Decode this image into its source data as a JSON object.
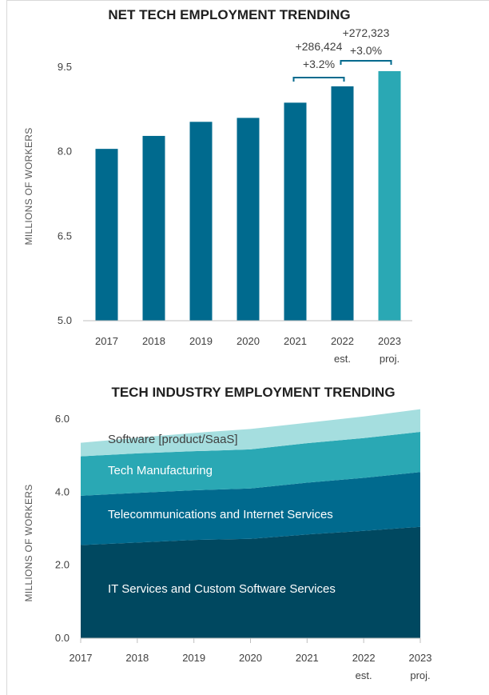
{
  "chart_data": [
    {
      "type": "bar",
      "title": "NET TECH EMPLOYMENT TRENDING",
      "ylabel": "MILLIONS OF WORKERS",
      "xlabel": "",
      "ylim": [
        5.0,
        10.0
      ],
      "yticks": [
        "5.0",
        "6.5",
        "8.0",
        "9.5"
      ],
      "categories": [
        "2017",
        "2018",
        "2019",
        "2020",
        "2021",
        "2022",
        "2023"
      ],
      "category_notes": [
        "",
        "",
        "",
        "",
        "",
        "est.",
        "proj."
      ],
      "values": [
        8.05,
        8.28,
        8.53,
        8.6,
        8.87,
        9.16,
        9.43
      ],
      "colors": [
        "#006a8e",
        "#006a8e",
        "#006a8e",
        "#006a8e",
        "#006a8e",
        "#006a8e",
        "#2aa8b4"
      ],
      "annotations": [
        {
          "text": "+286,424",
          "pct": "+3.2%",
          "from": "2021",
          "to": "2022"
        },
        {
          "text": "+272,323",
          "pct": "+3.0%",
          "from": "2022",
          "to": "2023"
        }
      ],
      "grid": false
    },
    {
      "type": "area",
      "stacked": true,
      "title": "TECH INDUSTRY EMPLOYMENT TRENDING",
      "ylabel": "MILLIONS OF WORKERS",
      "xlabel": "",
      "ylim": [
        0,
        6.3
      ],
      "yticks": [
        "0.0",
        "2.0",
        "4.0",
        "6.0"
      ],
      "x": [
        "2017",
        "2018",
        "2019",
        "2020",
        "2021",
        "2022",
        "2023"
      ],
      "x_notes": [
        "",
        "",
        "",
        "",
        "",
        "est.",
        "proj."
      ],
      "series": [
        {
          "name": "IT Services and Custom Software Services",
          "color": "#004860",
          "label_color": "#ffffff",
          "values": [
            2.55,
            2.62,
            2.69,
            2.72,
            2.84,
            2.94,
            3.05
          ]
        },
        {
          "name": "Telecommunications and Internet Services",
          "color": "#006a8e",
          "label_color": "#ffffff",
          "values": [
            1.35,
            1.36,
            1.36,
            1.38,
            1.42,
            1.45,
            1.5
          ]
        },
        {
          "name": "Tech Manufacturing",
          "color": "#2aa8b4",
          "label_color": "#ffffff",
          "values": [
            1.08,
            1.08,
            1.07,
            1.07,
            1.08,
            1.09,
            1.1
          ]
        },
        {
          "name": "Software [product/SaaS]",
          "color": "#a5dedf",
          "label_color": "#404040",
          "values": [
            0.37,
            0.43,
            0.5,
            0.56,
            0.56,
            0.59,
            0.62
          ]
        }
      ],
      "grid": false
    }
  ]
}
